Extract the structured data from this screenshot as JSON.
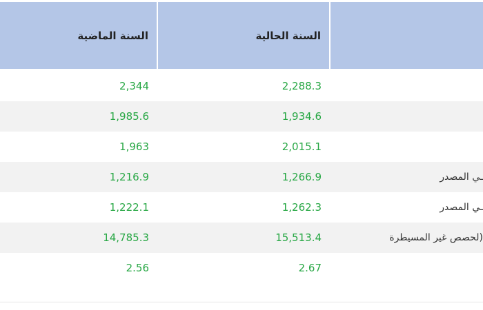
{
  "table": {
    "header": {
      "current": "السنة الحالية",
      "previous": "السنة الماضية"
    },
    "rows": [
      {
        "current": "2,288.3",
        "previous": "2,344"
      },
      {
        "current": "1,934.6",
        "previous": "1,985.6"
      },
      {
        "current": "2,015.1",
        "previous": "1,963"
      },
      {
        "label": "ـي المصدر",
        "current": "1,266.9",
        "previous": "1,216.9"
      },
      {
        "label": "ـي المصدر",
        "current": "1,262.3",
        "previous": "1,222.1"
      },
      {
        "label": "لحصص غير المسيطرة)",
        "current": "15,513.4",
        "previous": "14,785.3"
      },
      {
        "current": "2.67",
        "previous": "2.56"
      }
    ]
  }
}
